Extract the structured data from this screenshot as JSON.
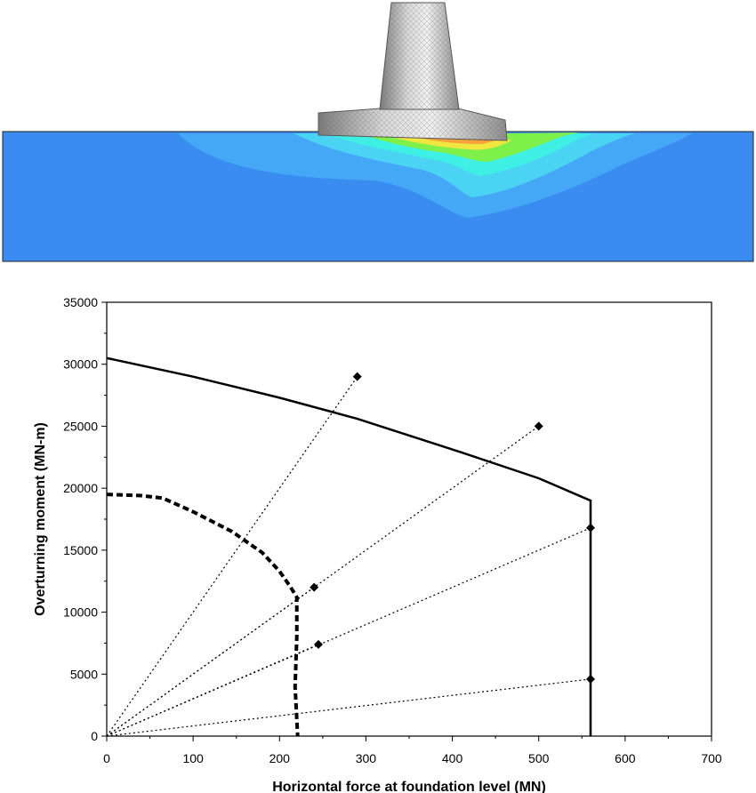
{
  "chart_data": {
    "type": "line",
    "xlabel": "Horizontal force at foundation level  (MN)",
    "ylabel": "Overturning moment  (MN-m)",
    "xlim": [
      0,
      700
    ],
    "ylim": [
      0,
      35000
    ],
    "x_ticks": [
      "0",
      "100",
      "200",
      "300",
      "400",
      "500",
      "600",
      "700"
    ],
    "y_ticks": [
      "0",
      "5000",
      "10000",
      "15000",
      "20000",
      "25000",
      "30000",
      "35000"
    ],
    "grid": false,
    "legend": "none",
    "series": [
      {
        "style": "solid",
        "points": [
          [
            0,
            30500
          ],
          [
            100,
            29000
          ],
          [
            200,
            27300
          ],
          [
            290,
            25600
          ],
          [
            410,
            22900
          ],
          [
            500,
            20800
          ],
          [
            560,
            19000
          ],
          [
            560,
            0
          ]
        ]
      },
      {
        "style": "dashed-thick",
        "points": [
          [
            0,
            19500
          ],
          [
            40,
            19400
          ],
          [
            65,
            19200
          ],
          [
            100,
            18100
          ],
          [
            145,
            16500
          ],
          [
            180,
            14800
          ],
          [
            200,
            13300
          ],
          [
            213,
            12000
          ],
          [
            220,
            11200
          ],
          [
            220,
            8000
          ],
          [
            218,
            4000
          ],
          [
            221,
            0
          ]
        ]
      },
      {
        "style": "dotted-rays",
        "rays": [
          [
            290,
            29000
          ],
          [
            500,
            25000
          ],
          [
            240,
            12000
          ],
          [
            560,
            16800
          ],
          [
            245,
            7400
          ],
          [
            560,
            4600
          ]
        ]
      },
      {
        "style": "markers",
        "marker": "diamond",
        "points": [
          [
            290,
            29000
          ],
          [
            500,
            25000
          ],
          [
            240,
            12000
          ],
          [
            560,
            16800
          ],
          [
            245,
            7400
          ],
          [
            560,
            4600
          ]
        ]
      }
    ]
  },
  "colors": {
    "soil_base": "#3a8cf0",
    "contour_light_blue": "#44a8f6",
    "contour_cyan": "#4ad3f2",
    "contour_aqua": "#3ef0e4",
    "contour_green": "#7ef04a",
    "contour_yellow": "#f0e640",
    "contour_orange": "#f5a23a",
    "structure_grey": "#a9a9a9",
    "line": "#000000"
  }
}
